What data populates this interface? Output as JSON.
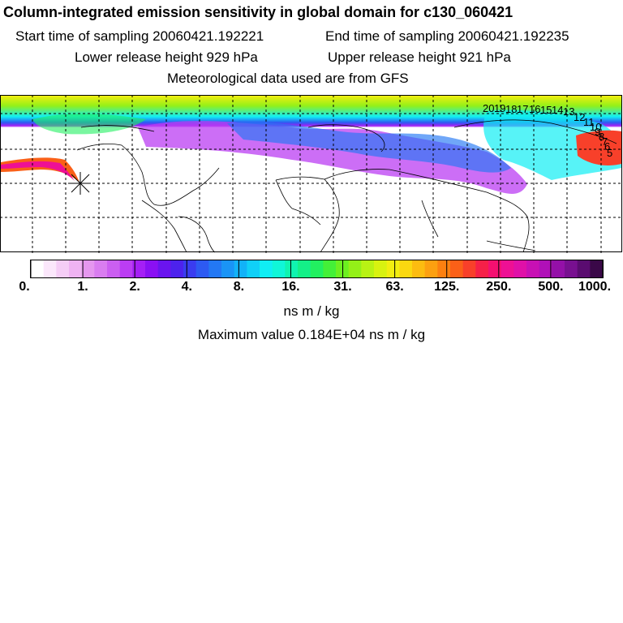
{
  "title": "Column-integrated emission sensitivity in global domain for c130_060421",
  "start_time": "Start time of sampling 20060421.192221",
  "end_time": "End time of sampling 20060421.192235",
  "lower_height": "Lower release height  929 hPa",
  "upper_height": "Upper release height  921 hPa",
  "met_data": "Meteorological data used are from GFS",
  "colorbar": {
    "ticks": [
      "0.",
      "1.",
      "2.",
      "4.",
      "8.",
      "16.",
      "31.",
      "63.",
      "125.",
      "250.",
      "500.",
      "1000."
    ],
    "units": "ns m / kg",
    "colors": [
      "#ffffff",
      "#fbe7fb",
      "#f5cdf6",
      "#efb3f2",
      "#e597ef",
      "#d97df0",
      "#cb5ff1",
      "#bb3df3",
      "#a51ff5",
      "#8a10f3",
      "#6a14ef",
      "#4d22ed",
      "#3a3cf0",
      "#2d5af2",
      "#2378f4",
      "#1a94f6",
      "#12b2f8",
      "#10d0f8",
      "#10eef4",
      "#10f6d8",
      "#10f4b0",
      "#14f088",
      "#22f060",
      "#44f038",
      "#6cf020",
      "#94f018",
      "#b8f214",
      "#d8f210",
      "#f2ee10",
      "#fad810",
      "#fcbc10",
      "#fca010",
      "#fc8010",
      "#fa6018",
      "#f8402a",
      "#f62048",
      "#f41070",
      "#ee1094",
      "#e010a8",
      "#c810b4",
      "#b010b8",
      "#9410a8",
      "#781090",
      "#5a0c70",
      "#3a0848"
    ]
  },
  "max_value": "Maximum value  0.184E+04 ns m / kg",
  "trajectory_labels": [
    "20",
    "19",
    "18",
    "17",
    "16",
    "15",
    "14",
    "13",
    "12",
    "11",
    "10",
    "9",
    "8",
    "7",
    "6",
    "5"
  ]
}
